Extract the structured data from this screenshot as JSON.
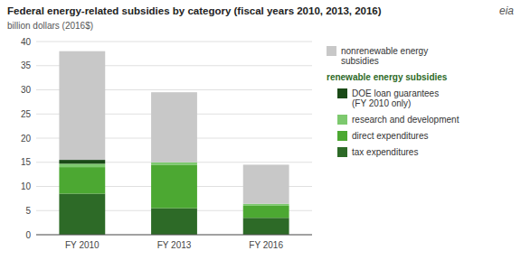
{
  "chart_data": {
    "type": "bar",
    "stacked": true,
    "title": "Federal energy-related subsidies by category (fiscal years 2010, 2013, 2016)",
    "subtitle": "billion dollars (2016$)",
    "categories": [
      "FY 2010",
      "FY 2013",
      "FY 2016"
    ],
    "series": [
      {
        "name": "tax expenditures",
        "color": "#2d6a27",
        "values": [
          8.5,
          5.5,
          3.5
        ]
      },
      {
        "name": "direct expenditures",
        "color": "#4ca832",
        "values": [
          5.5,
          9.0,
          2.5
        ]
      },
      {
        "name": "research and development",
        "color": "#7dc96e",
        "values": [
          0.7,
          0.5,
          0.4
        ]
      },
      {
        "name": "DOE loan guarantees\n(FY 2010 only)",
        "color": "#1a4a17",
        "values": [
          0.8,
          0.0,
          0.0
        ]
      },
      {
        "name": "nonrenewable energy\nsubsidies",
        "color": "#c8c8c8",
        "values": [
          22.5,
          14.5,
          8.1
        ]
      }
    ],
    "annotations": [
      "renewable energy subsidies",
      "eia"
    ],
    "ylim": [
      0,
      40
    ],
    "yticks": [
      0,
      5,
      10,
      15,
      20,
      25,
      30,
      35,
      40
    ],
    "grid": true,
    "legend": "right"
  }
}
